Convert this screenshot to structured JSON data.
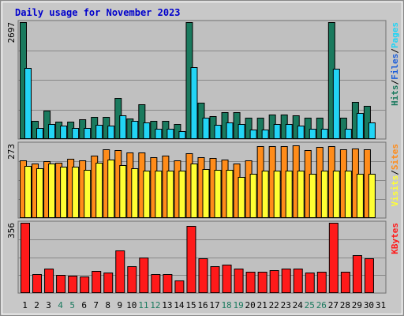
{
  "chart_data": {
    "type": "bar",
    "title": "Daily usage for November 2023",
    "categories": [
      "1",
      "2",
      "3",
      "4",
      "5",
      "6",
      "7",
      "8",
      "9",
      "10",
      "11",
      "12",
      "13",
      "14",
      "15",
      "16",
      "17",
      "18",
      "19",
      "20",
      "21",
      "22",
      "23",
      "24",
      "25",
      "26",
      "27",
      "28",
      "29",
      "30",
      "31"
    ],
    "weekend_days": [
      "4",
      "5",
      "11",
      "12",
      "18",
      "19",
      "25",
      "26"
    ],
    "colors": {
      "hits": "#1a7a5e",
      "files": "#1e5fd9",
      "pages": "#22d4f5",
      "visits": "#ffff33",
      "sites": "#ff8c1a",
      "kbytes": "#ff1a1a",
      "weekday_label": "#000000",
      "weekend_label": "#1a7a5e",
      "plot_bg": "#c0c0c0",
      "frame_bg": "#c8c8c8",
      "title": "#0000cc"
    },
    "panels": [
      {
        "y_max_label": "2697",
        "ymax": 2697,
        "series": [
          {
            "name": "Hits",
            "key": "hits",
            "values": [
              2697,
              420,
              660,
              400,
              400,
              450,
              510,
              510,
              950,
              480,
              800,
              420,
              420,
              340,
              2697,
              840,
              520,
              620,
              620,
              490,
              490,
              560,
              560,
              540,
              490,
              490,
              2697,
              490,
              860,
              770,
              null
            ]
          },
          {
            "name": "Pages",
            "key": "pages",
            "values": [
              1640,
              260,
              340,
              310,
              260,
              260,
              320,
              310,
              540,
              420,
              380,
              240,
              240,
              190,
              1660,
              500,
              320,
              380,
              340,
              220,
              210,
              340,
              340,
              310,
              240,
              240,
              1620,
              240,
              600,
              380,
              null
            ]
          }
        ],
        "legend": [
          {
            "text": "Hits",
            "key": "hits"
          },
          {
            "text": "/",
            "key": null
          },
          {
            "text": "Files",
            "key": "files"
          },
          {
            "text": "/",
            "key": null
          },
          {
            "text": "Pages",
            "key": "pages"
          }
        ]
      },
      {
        "y_max_label": "273",
        "ymax": 273,
        "series": [
          {
            "name": "Sites",
            "key": "sites",
            "values": [
              213,
              201,
              209,
              202,
              219,
              211,
              229,
              254,
              249,
              242,
              242,
              223,
              230,
              212,
              239,
              223,
              221,
              214,
              200,
              212,
              264,
              264,
              264,
              268,
              249,
              260,
              264,
              254,
              256,
              253,
              null
            ]
          },
          {
            "name": "Visits",
            "key": "visits",
            "values": [
              191,
              182,
              201,
              189,
              188,
              176,
              204,
              214,
              194,
              182,
              174,
              174,
              174,
              174,
              200,
              180,
              178,
              176,
              152,
              164,
              174,
              174,
              174,
              174,
              164,
              174,
              174,
              174,
              164,
              164,
              null
            ]
          }
        ],
        "legend": [
          {
            "text": "Visits",
            "key": "visits"
          },
          {
            "text": "/",
            "key": null
          },
          {
            "text": "Sites",
            "key": "sites"
          }
        ]
      },
      {
        "y_max_label": "356",
        "ymax": 356,
        "series": [
          {
            "name": "KBytes",
            "key": "kbytes",
            "values": [
              356,
              96,
              126,
              92,
              86,
              84,
              112,
              104,
              216,
              136,
              180,
              96,
              96,
              64,
              340,
              174,
              134,
              144,
              126,
              110,
              110,
              118,
              126,
              126,
              104,
              108,
              356,
              108,
              190,
              174,
              null
            ]
          }
        ],
        "legend": [
          {
            "text": "KBytes",
            "key": "kbytes"
          }
        ]
      }
    ]
  }
}
